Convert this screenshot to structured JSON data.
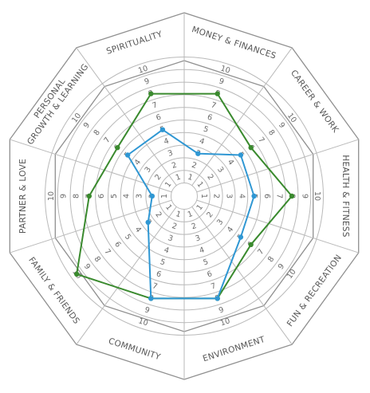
{
  "chart_data": {
    "type": "radar",
    "rlim": [
      0,
      10
    ],
    "ticks": [
      1,
      2,
      3,
      4,
      5,
      6,
      7,
      8,
      9,
      10
    ],
    "categories": [
      {
        "label": "MONEY & FINANCES",
        "lines": [
          "MONEY & FINANCES"
        ]
      },
      {
        "label": "CAREER & WORK",
        "lines": [
          "CAREER & WORK"
        ]
      },
      {
        "label": "HEALTH & FITNESS",
        "lines": [
          "HEALTH & FITNESS"
        ]
      },
      {
        "label": "FUN & RECREATION",
        "lines": [
          "FUN & RECREATION"
        ]
      },
      {
        "label": "ENVIRONMENT",
        "lines": [
          "ENVIRONMENT"
        ]
      },
      {
        "label": "COMMUNITY",
        "lines": [
          "COMMUNITY"
        ]
      },
      {
        "label": "FAMILY & FRIENDS",
        "lines": [
          "FAMILY & FRIENDS"
        ]
      },
      {
        "label": "PARTNER & LOVE",
        "lines": [
          "PARTNER & LOVE"
        ]
      },
      {
        "label": "PERSONAL GROWTH & LEARNING",
        "lines": [
          "PERSONAL",
          "GROWTH & LEARNING"
        ]
      },
      {
        "label": "SPIRITUALITY",
        "lines": [
          "SPIRITUALITY"
        ]
      }
    ],
    "series": [
      {
        "color": "#3a8a2e",
        "values": [
          8,
          6,
          8,
          6,
          8,
          8,
          10,
          7,
          6,
          8
        ]
      },
      {
        "color": "#2f97d3",
        "values": [
          3,
          5,
          5,
          5,
          8,
          8,
          3,
          2,
          5,
          5
        ]
      }
    ],
    "grid": true,
    "legend": "none"
  }
}
